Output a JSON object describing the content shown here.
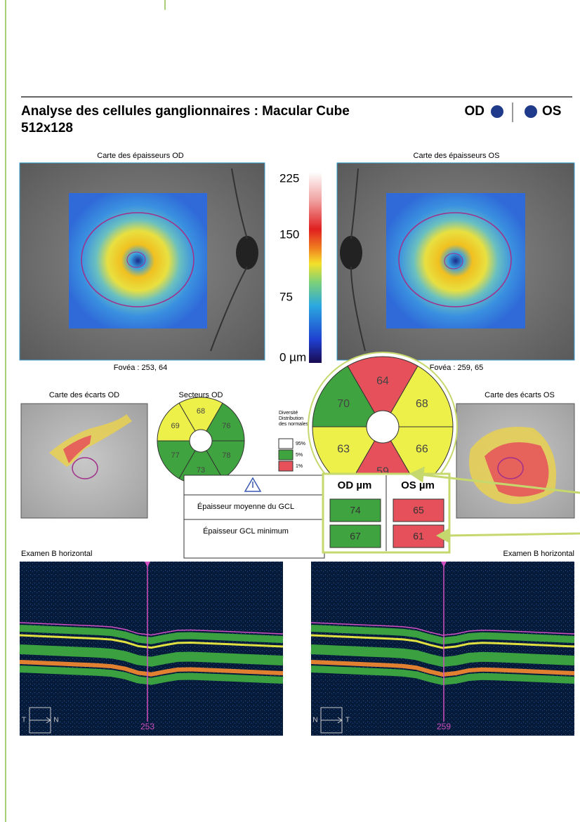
{
  "header": {
    "title": "Analyse des cellules ganglionnaires : Macular Cube",
    "subtitle": "512x128",
    "eye_od": "OD",
    "eye_os": "OS"
  },
  "thickness_maps": {
    "od": {
      "title": "Carte des épaisseurs OD",
      "fovea": "Fovéa : 253, 64"
    },
    "os": {
      "title": "Carte des épaisseurs OS",
      "fovea": "Fovéa : 259, 65"
    },
    "scale_labels": [
      "225",
      "150",
      "75",
      "0 µm"
    ]
  },
  "deviation_maps": {
    "od": "Carte des écarts OD",
    "os": "Carte des écarts OS"
  },
  "sectors_od": {
    "title": "Secteurs OD",
    "sectors": [
      {
        "value": "68",
        "color": "#eef04a"
      },
      {
        "value": "76",
        "color": "#3fa33f"
      },
      {
        "value": "78",
        "color": "#3fa33f"
      },
      {
        "value": "73",
        "color": "#3fa33f"
      },
      {
        "value": "77",
        "color": "#3fa33f"
      },
      {
        "value": "69",
        "color": "#eef04a"
      }
    ]
  },
  "sectors_os_zoom": {
    "sectors": [
      {
        "value": "64",
        "color": "#e5505a"
      },
      {
        "value": "68",
        "color": "#eef04a"
      },
      {
        "value": "66",
        "color": "#eef04a"
      },
      {
        "value": "59",
        "color": "#e5505a"
      },
      {
        "value": "63",
        "color": "#eef04a"
      },
      {
        "value": "70",
        "color": "#3fa33f"
      }
    ]
  },
  "legend": {
    "title": [
      "Diversité",
      "Distribution",
      "des normales"
    ],
    "items": [
      {
        "label": "95%",
        "color": "#ffffff"
      },
      {
        "label": "5%",
        "color": "#3fa33f"
      },
      {
        "label": "1%",
        "color": "#e5505a"
      }
    ]
  },
  "table": {
    "headers": [
      "OD µm",
      "OS µm"
    ],
    "rows": [
      {
        "label": "Épaisseur moyenne du GCL",
        "od": "74",
        "os": "65",
        "od_color": "#3fa33f",
        "os_color": "#e5505a"
      },
      {
        "label": "Épaisseur GCL minimum",
        "od": "67",
        "os": "61",
        "od_color": "#3fa33f",
        "os_color": "#e5505a"
      }
    ]
  },
  "bscans": {
    "od": {
      "title": "Examen B horizontal",
      "position": "253",
      "left": "T",
      "right": "N"
    },
    "os": {
      "title": "Examen B horizontal",
      "position": "259",
      "left": "N",
      "right": "T"
    }
  }
}
